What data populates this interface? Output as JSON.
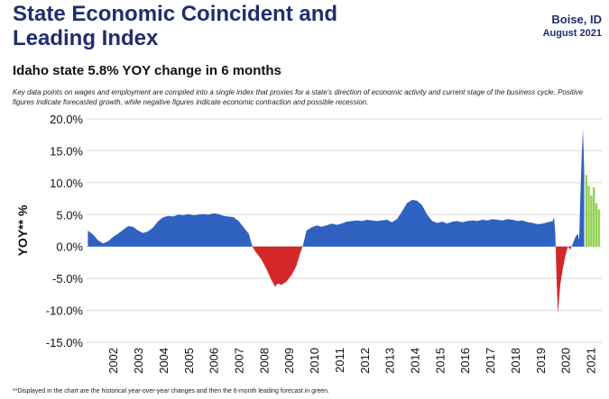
{
  "header": {
    "title": "State Economic Coincident and Leading Index",
    "location": "Boise, ID",
    "date": "August 2021"
  },
  "subtitle": "Idaho state 5.8% YOY change in 6 months",
  "description": "Key data points on wages and employment are compiled into a single index that proxies for a state's direction of economic activity and current stage of the business cycle. Positive figures indicate forecasted growth, while negative figures indicate economic contraction and possible recession.",
  "footnote": "**Displayed in the chart are the historical year-over-year changes and then the 6-month leading forecast in green.",
  "colors": {
    "positive": "#2f62c0",
    "negative": "#d42828",
    "forecast": "#8ed04a",
    "title": "#1f2e6e",
    "grid": "#d9d9d9"
  },
  "chart_data": {
    "type": "area",
    "ylabel": "YOY** %",
    "ylim": [
      -15,
      20
    ],
    "yticks": [
      -15,
      -10,
      -5,
      0,
      5,
      10,
      15,
      20
    ],
    "ytick_labels": [
      "-15.0%",
      "-10.0%",
      "-5.0%",
      "0.0%",
      "5.0%",
      "10.0%",
      "15.0%",
      "20.0%"
    ],
    "xlim": [
      2001.45,
      2021.95
    ],
    "xtick_labels": [
      "2002",
      "2003",
      "2004",
      "2005",
      "2006",
      "2007",
      "2008",
      "2009",
      "2010",
      "2011",
      "2012",
      "2013",
      "2014",
      "2015",
      "2016",
      "2017",
      "2018",
      "2019",
      "2020",
      "2021"
    ],
    "grid": true,
    "series": [
      {
        "kind": "history",
        "x": [
          2001.5,
          2001.7,
          2001.9,
          2002.1,
          2002.3,
          2002.5,
          2002.7,
          2002.9,
          2003.1,
          2003.3,
          2003.5,
          2003.7,
          2003.9,
          2004.1,
          2004.3,
          2004.5,
          2004.7,
          2004.9,
          2005.1,
          2005.3,
          2005.5,
          2005.7,
          2005.9,
          2006.1,
          2006.3,
          2006.5,
          2006.7,
          2006.9,
          2007.1,
          2007.3,
          2007.5,
          2007.7,
          2007.9,
          2008.05,
          2008.2,
          2008.4,
          2008.6,
          2008.8,
          2008.95,
          2009.05,
          2009.2,
          2009.4,
          2009.6,
          2009.8,
          2009.95,
          2010.05,
          2010.2,
          2010.4,
          2010.6,
          2010.8,
          2011.0,
          2011.2,
          2011.4,
          2011.6,
          2011.8,
          2012.0,
          2012.2,
          2012.4,
          2012.6,
          2012.8,
          2013.0,
          2013.2,
          2013.4,
          2013.6,
          2013.8,
          2014.0,
          2014.2,
          2014.4,
          2014.6,
          2014.8,
          2015.0,
          2015.2,
          2015.4,
          2015.6,
          2015.8,
          2016.0,
          2016.2,
          2016.4,
          2016.6,
          2016.8,
          2017.0,
          2017.2,
          2017.4,
          2017.6,
          2017.8,
          2018.0,
          2018.2,
          2018.4,
          2018.6,
          2018.8,
          2019.0,
          2019.2,
          2019.4,
          2019.6,
          2019.8,
          2020.0,
          2020.05,
          2020.1,
          2020.15,
          2020.2,
          2020.3,
          2020.4,
          2020.5,
          2020.6,
          2020.7,
          2020.8,
          2020.9,
          2021.0,
          2021.05,
          2021.1,
          2021.15,
          2021.2,
          2021.25
        ],
        "y": [
          2.5,
          1.9,
          1.0,
          0.5,
          0.8,
          1.5,
          2.0,
          2.6,
          3.2,
          3.1,
          2.5,
          2.1,
          2.4,
          3.0,
          4.0,
          4.6,
          4.8,
          4.7,
          5.0,
          4.9,
          5.1,
          4.9,
          5.0,
          5.1,
          5.0,
          5.2,
          5.1,
          4.8,
          4.7,
          4.6,
          4.0,
          3.0,
          2.0,
          0.0,
          -1.0,
          -2.0,
          -3.5,
          -5.2,
          -6.3,
          -5.8,
          -6.0,
          -5.5,
          -4.5,
          -3.0,
          -1.0,
          0.0,
          2.5,
          3.0,
          3.3,
          3.1,
          3.3,
          3.6,
          3.4,
          3.6,
          3.9,
          4.0,
          4.1,
          4.0,
          4.2,
          4.1,
          4.0,
          4.1,
          4.2,
          3.8,
          4.3,
          5.5,
          6.8,
          7.3,
          7.2,
          6.5,
          5.0,
          4.0,
          3.7,
          3.9,
          3.6,
          3.9,
          4.0,
          3.8,
          4.0,
          4.1,
          4.0,
          4.2,
          4.1,
          4.3,
          4.2,
          4.1,
          4.3,
          4.2,
          4.0,
          4.1,
          3.8,
          3.7,
          3.5,
          3.6,
          3.8,
          4.0,
          4.6,
          2.0,
          -5.0,
          -10.5,
          -6.0,
          -3.5,
          -1.5,
          0.0,
          -0.5,
          0.5,
          1.5,
          2.0,
          1.0,
          8.0,
          14.0,
          18.5,
          12.0
        ]
      },
      {
        "kind": "forecast",
        "x": [
          2021.3,
          2021.4,
          2021.5,
          2021.6,
          2021.7,
          2021.8
        ],
        "y": [
          11.2,
          9.5,
          8.0,
          9.3,
          6.8,
          5.8
        ]
      }
    ]
  }
}
